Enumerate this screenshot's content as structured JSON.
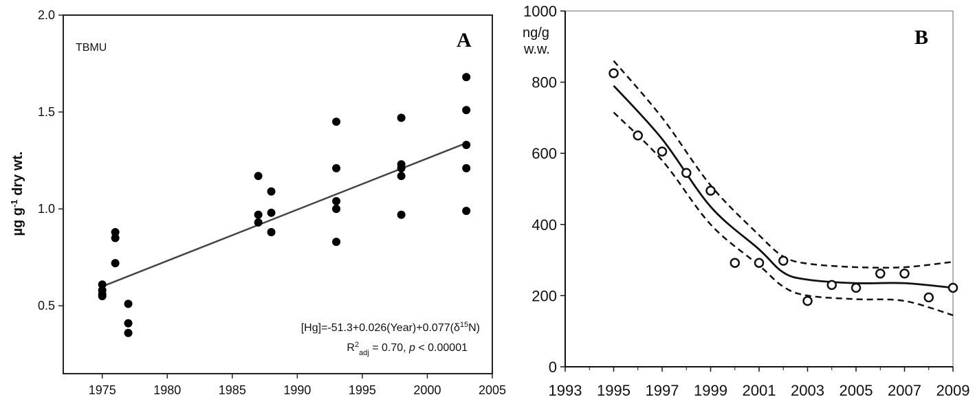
{
  "chart_data": [
    {
      "type": "scatter",
      "panel_label": "A",
      "series_label": "TBMU",
      "ylabel_main": "µg g",
      "ylabel_sup": "-1",
      "ylabel_rest": " dry wt.",
      "xlim": [
        1972,
        2005
      ],
      "ylim": [
        0.15,
        2.0
      ],
      "xticks": [
        "1975",
        "1980",
        "1985",
        "1990",
        "1995",
        "2000",
        "2005"
      ],
      "yticks": [
        "0.5",
        "1.0",
        "1.5",
        "2.0"
      ],
      "points": [
        [
          1975,
          0.61
        ],
        [
          1975,
          0.58
        ],
        [
          1975,
          0.56
        ],
        [
          1975,
          0.55
        ],
        [
          1976,
          0.88
        ],
        [
          1976,
          0.85
        ],
        [
          1976,
          0.72
        ],
        [
          1977,
          0.51
        ],
        [
          1977,
          0.41
        ],
        [
          1977,
          0.36
        ],
        [
          1987,
          1.17
        ],
        [
          1987,
          0.97
        ],
        [
          1987,
          0.93
        ],
        [
          1988,
          1.09
        ],
        [
          1988,
          0.98
        ],
        [
          1988,
          0.88
        ],
        [
          1993,
          1.45
        ],
        [
          1993,
          1.21
        ],
        [
          1993,
          1.04
        ],
        [
          1993,
          1.0
        ],
        [
          1993,
          0.83
        ],
        [
          1998,
          1.47
        ],
        [
          1998,
          1.23
        ],
        [
          1998,
          1.21
        ],
        [
          1998,
          1.17
        ],
        [
          1998,
          0.97
        ],
        [
          2003,
          1.68
        ],
        [
          2003,
          1.51
        ],
        [
          2003,
          1.33
        ],
        [
          2003,
          1.21
        ],
        [
          2003,
          0.99
        ]
      ],
      "fit_line": [
        [
          1975,
          0.6
        ],
        [
          2003,
          1.34
        ]
      ],
      "annotation_eq_main": "[Hg]=-51.3+0.026(Year)+0.077(δ",
      "annotation_eq_sup": "15",
      "annotation_eq_end": "N)",
      "annotation_r_main": "R",
      "annotation_r_sup": "2",
      "annotation_r_sub": "adj",
      "annotation_r_rest": " = 0.70,  ",
      "annotation_p_italic": "p",
      "annotation_p_rest": " < 0.00001"
    },
    {
      "type": "line",
      "panel_label": "B",
      "unit_line1": "ng/g",
      "unit_line2": "w.w.",
      "xlim": [
        1993,
        2009
      ],
      "ylim": [
        0,
        1000
      ],
      "xticks": [
        "1993",
        "1995",
        "1997",
        "1999",
        "2001",
        "2003",
        "2005",
        "2007",
        "2009"
      ],
      "yticks": [
        "0",
        "200",
        "400",
        "600",
        "800",
        "1000"
      ],
      "observations": [
        [
          1995,
          825
        ],
        [
          1996,
          650
        ],
        [
          1997,
          605
        ],
        [
          1998,
          545
        ],
        [
          1999,
          495
        ],
        [
          2000,
          292
        ],
        [
          2001,
          292
        ],
        [
          2002,
          298
        ],
        [
          2003,
          185
        ],
        [
          2004,
          230
        ],
        [
          2005,
          222
        ],
        [
          2006,
          262
        ],
        [
          2007,
          262
        ],
        [
          2008,
          195
        ],
        [
          2009,
          222
        ]
      ],
      "trend": [
        [
          1995,
          790
        ],
        [
          1997,
          640
        ],
        [
          1999,
          450
        ],
        [
          2001,
          330
        ],
        [
          2002,
          265
        ],
        [
          2003,
          245
        ],
        [
          2005,
          235
        ],
        [
          2007,
          235
        ],
        [
          2009,
          222
        ]
      ],
      "upper": [
        [
          1995,
          860
        ],
        [
          1997,
          700
        ],
        [
          1999,
          510
        ],
        [
          2001,
          370
        ],
        [
          2002,
          310
        ],
        [
          2003,
          290
        ],
        [
          2005,
          280
        ],
        [
          2007,
          280
        ],
        [
          2009,
          295
        ]
      ],
      "lower": [
        [
          1995,
          715
        ],
        [
          1997,
          580
        ],
        [
          1999,
          400
        ],
        [
          2001,
          285
        ],
        [
          2002,
          225
        ],
        [
          2003,
          200
        ],
        [
          2005,
          190
        ],
        [
          2007,
          185
        ],
        [
          2009,
          145
        ]
      ]
    }
  ]
}
